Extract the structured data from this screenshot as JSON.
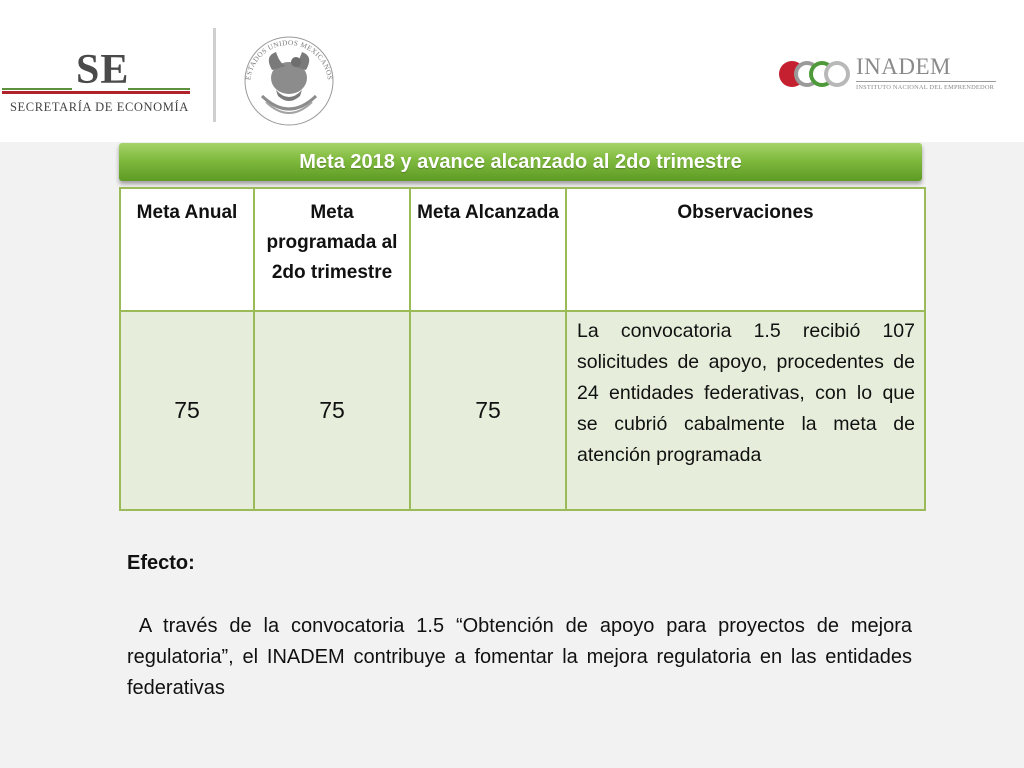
{
  "header": {
    "se_logo": {
      "abbr": "SE",
      "name": "SECRETARÍA DE ECONOMÍA"
    },
    "seal": {
      "text": "ESTADOS UNIDOS MEXICANOS"
    },
    "inadem_logo": {
      "name": "INADEM",
      "subtitle": "INSTITUTO NACIONAL DEL EMPRENDEDOR"
    }
  },
  "banner": {
    "title": "Meta 2018 y avance alcanzado al 2do trimestre"
  },
  "table": {
    "headers": [
      "Meta Anual",
      "Meta programada al 2do trimestre",
      "Meta Alcanzada",
      "Observaciones"
    ],
    "row": {
      "meta_anual": "75",
      "meta_programada": "75",
      "meta_alcanzada": "75",
      "observaciones": "La convocatoria 1.5 recibió 107 solicitudes de apoyo, procedentes de 24 entidades federativas, con lo que se cubrió cabalmente la meta de atención programada"
    }
  },
  "efecto": {
    "label": "Efecto:",
    "text": " A través de la convocatoria 1.5 “Obtención de apoyo para proyectos de mejora regulatoria”, el INADEM contribuye a fomentar la mejora regulatoria en las entidades federativas"
  },
  "colors": {
    "banner_green": "#7fba3d",
    "table_border": "#9bbb59",
    "cell_fill": "#e6eedb",
    "se_red": "#b0232a",
    "se_green": "#5e8f3c"
  }
}
